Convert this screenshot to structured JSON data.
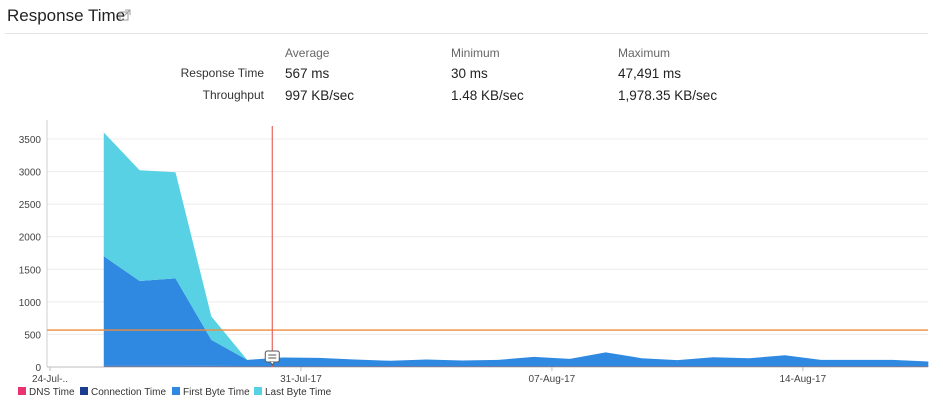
{
  "header": {
    "title": "Response Time",
    "external_icon": "external-link-icon"
  },
  "stats": {
    "columns": [
      "Average",
      "Minimum",
      "Maximum"
    ],
    "rows": [
      {
        "label": "Response Time",
        "values": [
          "567 ms",
          "30 ms",
          "47,491 ms"
        ]
      },
      {
        "label": "Throughput",
        "values": [
          "997 KB/sec",
          "1.48 KB/sec",
          "1,978.35 KB/sec"
        ]
      }
    ]
  },
  "chart_data": {
    "type": "area",
    "stacked": true,
    "x_start": "2017-07-24",
    "x_tick_labels": [
      "24-Jul-..",
      "31-Jul-17",
      "07-Aug-17",
      "14-Aug-17"
    ],
    "x_tick_days": [
      0,
      7,
      14,
      21
    ],
    "ylim": [
      0,
      3700
    ],
    "y_ticks": [
      0,
      500,
      1000,
      1500,
      2000,
      2500,
      3000,
      3500
    ],
    "grid": true,
    "legend_position": "bottom-left",
    "average_line": 567,
    "marker_day": 6.2,
    "x_days": [
      1.5,
      2.5,
      3.5,
      4.5,
      5.5,
      6.5,
      7.5,
      8.5,
      9.5,
      10.5,
      11.5,
      12.5,
      13.5,
      14.5,
      15.5,
      16.5,
      17.5,
      18.5,
      19.5,
      20.5,
      21.5,
      22.5,
      23.5,
      24.5
    ],
    "series": [
      {
        "name": "DNS Time",
        "color": "#e8336f",
        "values": [
          5,
          5,
          5,
          5,
          5,
          5,
          5,
          5,
          5,
          5,
          5,
          5,
          5,
          5,
          5,
          5,
          5,
          5,
          5,
          5,
          5,
          5,
          5,
          5
        ]
      },
      {
        "name": "Connection Time",
        "color": "#1c3c8f",
        "values": [
          15,
          15,
          15,
          12,
          10,
          10,
          10,
          10,
          10,
          10,
          10,
          10,
          10,
          10,
          10,
          10,
          10,
          10,
          10,
          10,
          10,
          10,
          10,
          10
        ]
      },
      {
        "name": "First Byte Time",
        "color": "#2f89e0",
        "values": [
          1680,
          1300,
          1340,
          400,
          95,
          130,
          125,
          100,
          80,
          100,
          85,
          95,
          140,
          110,
          210,
          120,
          90,
          135,
          120,
          165,
          95,
          95,
          95,
          70
        ]
      },
      {
        "name": "Last Byte Time",
        "color": "#57d1e3",
        "values": [
          1900,
          1700,
          1630,
          360,
          0,
          0,
          0,
          0,
          0,
          0,
          0,
          0,
          0,
          0,
          0,
          0,
          0,
          0,
          0,
          0,
          0,
          0,
          0,
          0
        ]
      }
    ]
  }
}
